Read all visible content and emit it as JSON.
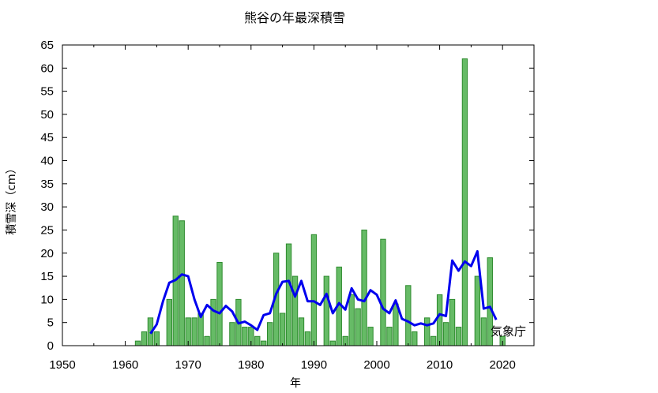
{
  "chart_data": {
    "type": "bar",
    "title": "熊谷の年最深積雪",
    "xlabel": "年",
    "ylabel": "積雪深（cm）",
    "credit": "気象庁",
    "xlim": [
      1950,
      2025
    ],
    "ylim": [
      0,
      65
    ],
    "xticks": [
      1950,
      1960,
      1970,
      1980,
      1990,
      2000,
      2010,
      2020
    ],
    "yticks": [
      0,
      5,
      10,
      15,
      20,
      25,
      30,
      35,
      40,
      45,
      50,
      55,
      60,
      65
    ],
    "grid": false,
    "bar_color": "#66bb66",
    "bar_edge_color": "#2e8b2e",
    "line_color": "#0000ee",
    "series": [
      {
        "kind": "bar",
        "x": [
          1962,
          1963,
          1964,
          1965,
          1966,
          1967,
          1968,
          1969,
          1970,
          1971,
          1972,
          1973,
          1974,
          1975,
          1976,
          1977,
          1978,
          1979,
          1980,
          1981,
          1982,
          1983,
          1984,
          1985,
          1986,
          1987,
          1988,
          1989,
          1990,
          1991,
          1992,
          1993,
          1994,
          1995,
          1996,
          1997,
          1998,
          1999,
          2000,
          2001,
          2002,
          2003,
          2004,
          2005,
          2006,
          2007,
          2008,
          2009,
          2010,
          2011,
          2012,
          2013,
          2014,
          2015,
          2016,
          2017,
          2018,
          2019,
          2020
        ],
        "values": [
          1,
          3,
          6,
          3,
          0,
          10,
          28,
          27,
          6,
          6,
          7,
          2,
          10,
          18,
          0,
          5,
          10,
          4,
          4,
          2,
          1,
          5,
          20,
          7,
          22,
          15,
          6,
          3,
          24,
          0,
          15,
          1,
          17,
          2,
          11,
          8,
          25,
          4,
          0,
          23,
          4,
          9,
          0,
          13,
          3,
          0,
          6,
          2,
          11,
          5,
          10,
          4,
          62,
          0,
          15,
          6,
          19,
          0,
          2
        ]
      },
      {
        "kind": "line",
        "x": [
          1964,
          1965,
          1966,
          1967,
          1968,
          1969,
          1970,
          1971,
          1972,
          1973,
          1974,
          1975,
          1976,
          1977,
          1978,
          1979,
          1980,
          1981,
          1982,
          1983,
          1984,
          1985,
          1986,
          1987,
          1988,
          1989,
          1990,
          1991,
          1992,
          1993,
          1994,
          1995,
          1996,
          1997,
          1998,
          1999,
          2000,
          2001,
          2002,
          2003,
          2004,
          2005,
          2006,
          2007,
          2008,
          2009,
          2010,
          2011,
          2012,
          2013,
          2014,
          2015,
          2016,
          2017,
          2018,
          2019
        ],
        "values": [
          2.6,
          4.6,
          9.6,
          13.6,
          14.2,
          15.4,
          15,
          10,
          6.2,
          8.8,
          7.6,
          7,
          8.6,
          7.4,
          4.8,
          5.2,
          4.4,
          3.4,
          6.6,
          7,
          11.2,
          13.8,
          14,
          10.6,
          14,
          9.6,
          9.6,
          8.8,
          11.2,
          7,
          9.2,
          7.8,
          12.4,
          10,
          9.6,
          12,
          11,
          8,
          7,
          9.8,
          5.8,
          5.2,
          4.4,
          4.8,
          4.4,
          4.8,
          6.8,
          6.4,
          18.4,
          16.2,
          18.2,
          17.2,
          20.4,
          8,
          8.4,
          5.6
        ]
      }
    ]
  }
}
